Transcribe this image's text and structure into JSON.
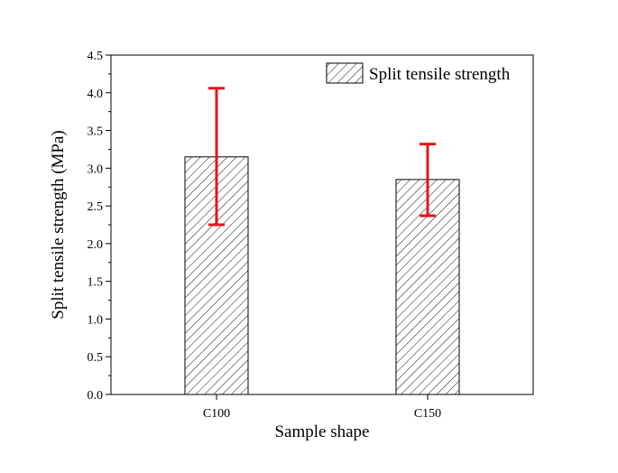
{
  "chart_data": {
    "type": "bar",
    "title": "",
    "xlabel": "Sample shape",
    "ylabel": "Split tensile strength (MPa)",
    "categories": [
      "C100",
      "C150"
    ],
    "series": [
      {
        "name": "Split tensile strength",
        "values": [
          3.15,
          2.85
        ],
        "error_low": [
          2.25,
          2.37
        ],
        "error_high": [
          4.06,
          3.32
        ]
      }
    ],
    "ylim": [
      0,
      4.5
    ],
    "yticks": [
      0.0,
      0.5,
      1.0,
      1.5,
      2.0,
      2.5,
      3.0,
      3.5,
      4.0,
      4.5
    ],
    "ytick_labels": [
      "0.0",
      "0.5",
      "1.0",
      "1.5",
      "2.0",
      "2.5",
      "3.0",
      "3.5",
      "4.0",
      "4.5"
    ],
    "grid": false,
    "legend_position": "top-right",
    "bar_pattern": "diagonal-hatch",
    "errorbar_color": "#e8141b"
  }
}
